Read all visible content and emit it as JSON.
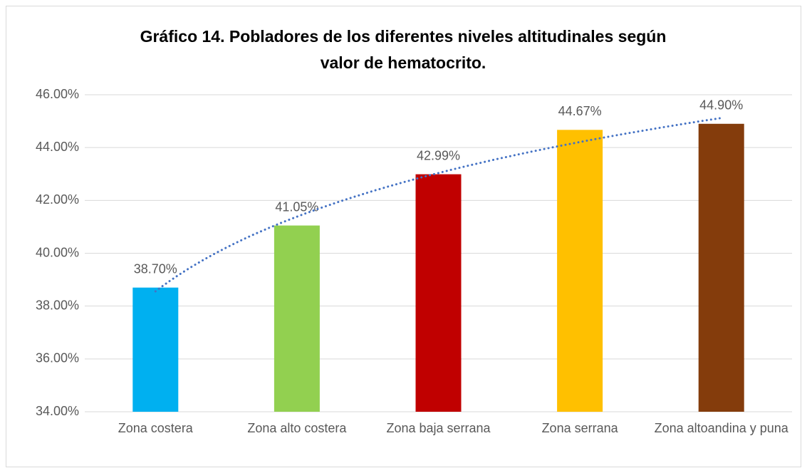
{
  "chart_data": {
    "type": "bar",
    "title": "Gráfico 14. Pobladores de los diferentes niveles altitudinales según valor de hematocrito.",
    "categories": [
      "Zona costera",
      "Zona alto costera",
      "Zona baja serrana",
      "Zona serrana",
      "Zona altoandina y puna"
    ],
    "values": [
      38.7,
      41.05,
      42.99,
      44.67,
      44.9
    ],
    "value_labels": [
      "38.70%",
      "41.05%",
      "42.99%",
      "44.67%",
      "44.90%"
    ],
    "colors": [
      "#00b0f0",
      "#92d050",
      "#c00000",
      "#ffc000",
      "#843c0c"
    ],
    "ylim": [
      34,
      46
    ],
    "yticks": [
      {
        "value": 34,
        "label": "34.00%"
      },
      {
        "value": 36,
        "label": "36.00%"
      },
      {
        "value": 38,
        "label": "38.00%"
      },
      {
        "value": 40,
        "label": "40.00%"
      },
      {
        "value": 42,
        "label": "42.00%"
      },
      {
        "value": 44,
        "label": "44.00%"
      },
      {
        "value": 46,
        "label": "46.00%"
      }
    ],
    "grid": true,
    "trendline": {
      "type": "logarithmic",
      "color": "#4472c4"
    }
  }
}
